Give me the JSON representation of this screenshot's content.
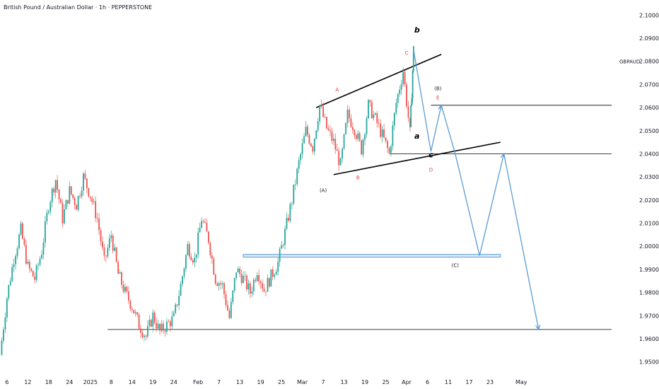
{
  "title": "British Pound / Australian Dollar · 1h · PEPPERSTONE",
  "symbol_label": "GBPAUD",
  "colors": {
    "up": "#26a69a",
    "down": "#ef5350",
    "projection": "#5b9bd5",
    "line": "#000000",
    "wave_label": "#e53935",
    "zone_fill": "#dbe9f7"
  },
  "chart_data": {
    "type": "line",
    "title": "British Pound / Australian Dollar · 1h · PEPPERSTONE",
    "ylim": [
      1.945,
      2.105
    ],
    "y_ticks": [
      "2.10000",
      "2.09000",
      "2.08003",
      "2.07000",
      "2.06000",
      "2.05000",
      "2.04000",
      "2.03000",
      "2.02000",
      "2.01000",
      "2.00000",
      "1.99000",
      "1.98000",
      "1.97000",
      "1.96000",
      "1.95000"
    ],
    "y_tick_values": [
      2.1,
      2.09,
      2.08003,
      2.07,
      2.06,
      2.05,
      2.04,
      2.03,
      2.02,
      2.01,
      2.0,
      1.99,
      1.98,
      1.97,
      1.96,
      1.95
    ],
    "x_tick_labels": [
      "6",
      "12",
      "18",
      "24",
      "2025",
      "8",
      "14",
      "19",
      "24",
      "Feb",
      "7",
      "13",
      "19",
      "25",
      "Mar",
      "7",
      "13",
      "19",
      "25",
      "Apr",
      "6",
      "11",
      "17",
      "23",
      "May"
    ],
    "x_tick_index": [
      0,
      3,
      6,
      9,
      12,
      15,
      18,
      21,
      24,
      27.5,
      30.5,
      33.5,
      36.5,
      39.5,
      42.5,
      45.5,
      48.5,
      51.5,
      54.5,
      57.5,
      60.5,
      63.5,
      66.5,
      69.5,
      74
    ],
    "x_range": [
      -1,
      87
    ],
    "price": {
      "name": "GBPAUD",
      "x": [
        -1,
        0,
        1,
        2,
        3,
        4,
        5,
        6,
        7,
        8,
        9,
        10,
        11,
        12,
        13,
        14,
        15,
        16,
        17,
        18,
        19,
        20,
        21,
        22,
        23,
        24,
        25,
        26,
        27,
        28,
        29,
        30,
        31,
        32,
        33,
        34,
        35,
        36,
        37,
        38,
        39,
        40,
        41,
        42,
        43,
        44,
        45,
        46,
        47,
        48,
        49,
        50,
        51,
        52,
        53,
        54,
        55,
        56,
        57,
        58,
        58.5
      ],
      "y": [
        1.953,
        1.978,
        1.995,
        2.007,
        1.991,
        1.986,
        1.998,
        2.018,
        2.029,
        2.012,
        2.024,
        2.018,
        2.03,
        2.022,
        2.012,
        1.993,
        2.005,
        1.988,
        1.98,
        1.974,
        1.966,
        1.961,
        1.97,
        1.963,
        1.966,
        1.969,
        1.983,
        2.0,
        1.994,
        2.012,
        2.003,
        1.986,
        1.983,
        1.969,
        1.99,
        1.986,
        1.98,
        1.99,
        1.981,
        1.987,
        1.993,
        2.006,
        2.02,
        2.036,
        2.05,
        2.043,
        2.061,
        2.051,
        2.045,
        2.035,
        2.057,
        2.051,
        2.042,
        2.061,
        2.055,
        2.048,
        2.04,
        2.062,
        2.076,
        2.049,
        2.085
      ]
    },
    "projection": {
      "name": "projection",
      "x": [
        58.5,
        61,
        62.5,
        64.5,
        68,
        71.5,
        76.5
      ],
      "y": [
        2.085,
        2.041,
        2.061,
        2.04,
        1.996,
        2.04,
        1.964
      ]
    },
    "trendlines": [
      {
        "x": [
          44.5,
          62.5
        ],
        "y": [
          2.06,
          2.083
        ]
      },
      {
        "x": [
          47,
          71
        ],
        "y": [
          2.031,
          2.045
        ]
      },
      {
        "x": [
          61,
          87
        ],
        "y": [
          2.061,
          2.061
        ]
      },
      {
        "x": [
          55,
          87
        ],
        "y": [
          2.04,
          2.04
        ]
      },
      {
        "x": [
          14.5,
          87
        ],
        "y": [
          1.964,
          1.964
        ]
      }
    ],
    "zone": {
      "x": [
        34,
        71
      ],
      "y": [
        1.9953,
        1.9965
      ]
    },
    "wave_labels": [
      {
        "text": "b",
        "x": 59,
        "y": 2.0925,
        "style": "bold"
      },
      {
        "text": "a",
        "x": 59,
        "y": 2.0465,
        "style": "bold"
      },
      {
        "text": "c",
        "x": 61,
        "y": 2.0385,
        "style": "bold"
      },
      {
        "text": "C",
        "x": 57.5,
        "y": 2.083,
        "style": "red"
      },
      {
        "text": "A",
        "x": 47.5,
        "y": 2.067,
        "style": "red"
      },
      {
        "text": "B",
        "x": 50.5,
        "y": 2.029,
        "style": "red"
      },
      {
        "text": "E",
        "x": 62,
        "y": 2.0635,
        "style": "red"
      },
      {
        "text": "D",
        "x": 61,
        "y": 2.0323,
        "style": "red"
      },
      {
        "text": "(B)",
        "x": 62,
        "y": 2.0675,
        "style": "dark"
      },
      {
        "text": "(A)",
        "x": 45.5,
        "y": 2.0235,
        "style": "dark"
      },
      {
        "text": "(C)",
        "x": 64.5,
        "y": 1.991,
        "style": "dark"
      }
    ]
  }
}
